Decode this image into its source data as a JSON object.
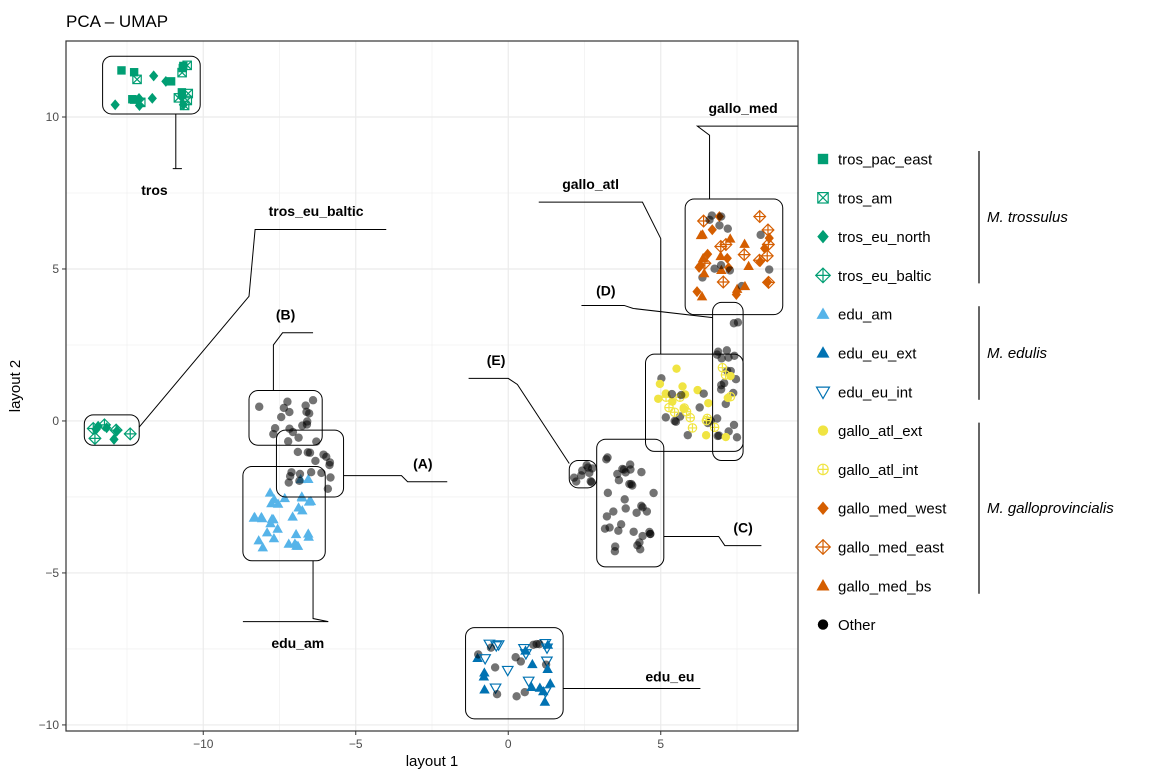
{
  "chart_data": {
    "type": "scatter",
    "title": "PCA – UMAP",
    "xlabel": "layout 1",
    "ylabel": "layout 2",
    "xlim": [
      -14.5,
      9.5
    ],
    "ylim": [
      -10.2,
      12.5
    ],
    "x_ticks": [
      -10,
      -5,
      0,
      5
    ],
    "y_ticks": [
      -10,
      -5,
      0,
      5,
      10
    ],
    "x_tick_labels": [
      "−10",
      "−5",
      "0",
      "5"
    ],
    "y_tick_labels": [
      "−10",
      "−5",
      "0",
      "5",
      "10"
    ],
    "grid": true,
    "legend_position": "right",
    "series": [
      {
        "name": "tros_pac_east",
        "color": "#009E73",
        "marker": "square"
      },
      {
        "name": "tros_am",
        "color": "#009E73",
        "marker": "square-cross"
      },
      {
        "name": "tros_eu_north",
        "color": "#009E73",
        "marker": "diamond"
      },
      {
        "name": "tros_eu_baltic",
        "color": "#009E73",
        "marker": "diamond-plus"
      },
      {
        "name": "edu_am",
        "color": "#56B4E9",
        "marker": "triangle"
      },
      {
        "name": "edu_eu_ext",
        "color": "#0072B2",
        "marker": "triangle"
      },
      {
        "name": "edu_eu_int",
        "color": "#0072B2",
        "marker": "triangle-down-open"
      },
      {
        "name": "gallo_atl_ext",
        "color": "#F0E442",
        "marker": "circle"
      },
      {
        "name": "gallo_atl_int",
        "color": "#F0E442",
        "marker": "circle-plus"
      },
      {
        "name": "gallo_med_west",
        "color": "#D55E00",
        "marker": "diamond"
      },
      {
        "name": "gallo_med_east",
        "color": "#D55E00",
        "marker": "diamond-plus"
      },
      {
        "name": "gallo_med_bs",
        "color": "#D55E00",
        "marker": "triangle"
      },
      {
        "name": "Other",
        "color": "#000000",
        "marker": "circle"
      }
    ],
    "legend_groups": [
      {
        "label": "M. trossulus",
        "first": 0,
        "last": 3
      },
      {
        "label": "M. edulis",
        "first": 4,
        "last": 6
      },
      {
        "label": "M. galloprovincialis",
        "first": 7,
        "last": 11
      }
    ],
    "clusters": [
      {
        "label": "tros",
        "box": [
          -13.3,
          -10.1,
          10.1,
          12.0
        ],
        "series": [
          "tros_pac_east",
          "tros_am",
          "tros_eu_north"
        ],
        "anchor": [
          -10.9,
          10.1
        ],
        "path": [
          [
            -10.9,
            8.3
          ],
          [
            -10.7,
            8.3
          ],
          [
            -11.0,
            8.3
          ]
        ],
        "text_at": [
          -11.6,
          7.6
        ]
      },
      {
        "label": "tros_eu_baltic",
        "box": [
          -13.9,
          -12.1,
          -0.8,
          0.2
        ],
        "series": [
          "tros_eu_baltic",
          "tros_eu_north"
        ],
        "anchor": [
          -12.1,
          -0.2
        ],
        "path": [
          [
            -8.5,
            4.1
          ],
          [
            -8.3,
            6.3
          ],
          [
            -4.0,
            6.3
          ]
        ],
        "text_at": [
          -6.3,
          6.9
        ]
      },
      {
        "label": "edu_am",
        "box": [
          -8.7,
          -6.0,
          -4.6,
          -1.5
        ],
        "series": [
          "edu_am"
        ],
        "anchor": [
          -6.4,
          -4.6
        ],
        "path": [
          [
            -6.4,
            -6.5
          ],
          [
            -5.9,
            -6.6
          ],
          [
            -8.7,
            -6.6
          ]
        ],
        "text_at": [
          -6.9,
          -7.3
        ]
      },
      {
        "label": "(A)",
        "box": [
          -7.6,
          -5.4,
          -2.5,
          -0.3
        ],
        "series": [
          "Other"
        ],
        "anchor": [
          -5.4,
          -1.8
        ],
        "path": [
          [
            -3.5,
            -1.8
          ],
          [
            -3.3,
            -2.0
          ],
          [
            -2.0,
            -2.0
          ]
        ],
        "text_at": [
          -2.8,
          -1.4
        ]
      },
      {
        "label": "(B)",
        "box": [
          -8.5,
          -6.1,
          -0.8,
          1.0
        ],
        "series": [
          "Other"
        ],
        "anchor": [
          -7.7,
          1.0
        ],
        "path": [
          [
            -7.7,
            2.5
          ],
          [
            -7.4,
            2.9
          ],
          [
            -6.4,
            2.9
          ]
        ],
        "text_at": [
          -7.3,
          3.5
        ]
      },
      {
        "label": "(C)",
        "box": [
          2.9,
          5.1,
          -4.8,
          -0.6
        ],
        "series": [
          "Other"
        ],
        "anchor": [
          5.1,
          -3.8
        ],
        "path": [
          [
            6.9,
            -3.8
          ],
          [
            7.1,
            -4.1
          ],
          [
            8.3,
            -4.1
          ]
        ],
        "text_at": [
          7.7,
          -3.5
        ]
      },
      {
        "label": "(D)",
        "box": [
          6.7,
          7.7,
          -1.3,
          3.9
        ],
        "series": [
          "Other"
        ],
        "anchor": [
          6.7,
          3.4
        ],
        "path": [
          [
            4.1,
            3.7
          ],
          [
            3.8,
            3.8
          ],
          [
            2.4,
            3.8
          ]
        ],
        "text_at": [
          3.2,
          4.3
        ]
      },
      {
        "label": "(E)",
        "box": [
          2.0,
          2.9,
          -2.2,
          -1.3
        ],
        "series": [
          "Other"
        ],
        "anchor": [
          2.0,
          -1.4
        ],
        "path": [
          [
            0.3,
            1.2
          ],
          [
            0.0,
            1.4
          ],
          [
            -1.3,
            1.4
          ]
        ],
        "text_at": [
          -0.4,
          2.0
        ]
      },
      {
        "label": "gallo_atl",
        "box": [
          4.5,
          7.7,
          -1.0,
          2.2
        ],
        "series": [
          "gallo_atl_ext",
          "gallo_atl_int",
          "Other"
        ],
        "anchor": [
          5.0,
          2.2
        ],
        "path": [
          [
            5.0,
            6.0
          ],
          [
            4.4,
            7.2
          ],
          [
            1.0,
            7.2
          ]
        ],
        "text_at": [
          2.7,
          7.8
        ]
      },
      {
        "label": "gallo_med",
        "box": [
          5.8,
          9.0,
          3.5,
          7.3
        ],
        "series": [
          "gallo_med_west",
          "gallo_med_east",
          "gallo_med_bs",
          "Other"
        ],
        "anchor": [
          6.6,
          7.3
        ],
        "path": [
          [
            6.6,
            9.4
          ],
          [
            6.2,
            9.7
          ],
          [
            9.5,
            9.7
          ]
        ],
        "text_at": [
          7.7,
          10.3
        ]
      },
      {
        "label": "edu_eu",
        "box": [
          -1.4,
          1.8,
          -9.8,
          -6.8
        ],
        "series": [
          "edu_eu_ext",
          "edu_eu_int",
          "Other"
        ],
        "anchor": [
          1.8,
          -8.8
        ],
        "path": [
          [
            3.7,
            -8.8
          ],
          [
            3.9,
            -8.8
          ],
          [
            6.3,
            -8.8
          ]
        ],
        "text_at": [
          5.3,
          -8.4
        ]
      }
    ]
  }
}
